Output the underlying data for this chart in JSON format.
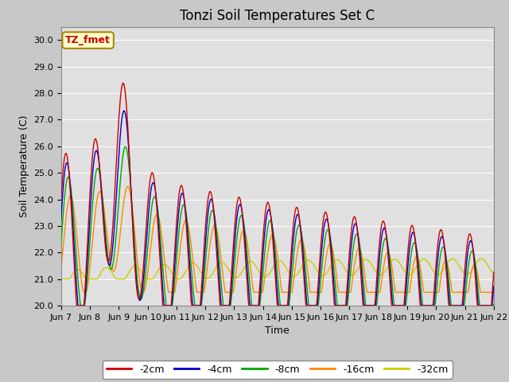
{
  "title": "Tonzi Soil Temperatures Set C",
  "xlabel": "Time",
  "ylabel": "Soil Temperature (C)",
  "ylim": [
    20.0,
    30.5
  ],
  "yticks": [
    20.0,
    21.0,
    22.0,
    23.0,
    24.0,
    25.0,
    26.0,
    27.0,
    28.0,
    29.0,
    30.0
  ],
  "colors": {
    "-2cm": "#cc0000",
    "-4cm": "#0000cc",
    "-8cm": "#00aa00",
    "-16cm": "#ff8800",
    "-32cm": "#cccc00"
  },
  "legend_labels": [
    "-2cm",
    "-4cm",
    "-8cm",
    "-16cm",
    "-32cm"
  ],
  "xtick_labels": [
    "Jun 7",
    "Jun 8",
    "Jun 9",
    "Jun 10",
    "Jun 11",
    "Jun 12",
    "Jun 13",
    "Jun 14",
    "Jun 15",
    "Jun 16",
    "Jun 17",
    "Jun 18",
    "Jun 19",
    "Jun 20",
    "Jun 21",
    "Jun 22"
  ],
  "annotation_text": "TZ_fmet",
  "annotation_color": "#cc0000",
  "annotation_bg": "#ffffcc",
  "annotation_border": "#aa8800",
  "fig_facecolor": "#c8c8c8",
  "plot_bg": "#e0e0e0",
  "title_fontsize": 12,
  "axis_fontsize": 9,
  "tick_fontsize": 8
}
